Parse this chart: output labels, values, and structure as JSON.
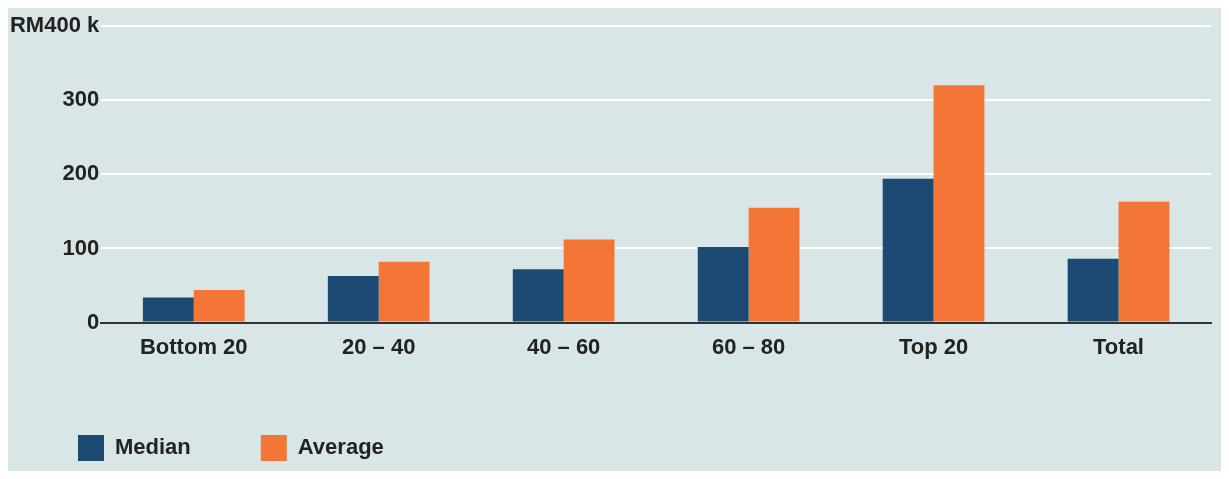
{
  "chart_data": {
    "type": "bar",
    "categories": [
      "Bottom 20",
      "20 – 40",
      "40 – 60",
      "60 – 80",
      "Top 20",
      "Total"
    ],
    "series": [
      {
        "name": "Median",
        "color": "#1b4a73",
        "values": [
          34,
          63,
          72,
          102,
          194,
          86
        ]
      },
      {
        "name": "Average",
        "color": "#f37636",
        "values": [
          44,
          82,
          112,
          155,
          320,
          163
        ]
      }
    ],
    "ylim": [
      0,
      400
    ],
    "yticks": [
      0,
      100,
      200,
      300,
      {
        "value": 400,
        "label": "RM400 k"
      }
    ],
    "grid": "y",
    "legend": "bottom left"
  }
}
